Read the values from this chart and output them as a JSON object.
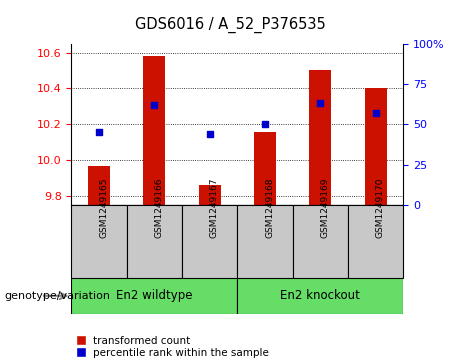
{
  "title": "GDS6016 / A_52_P376535",
  "samples": [
    "GSM1249165",
    "GSM1249166",
    "GSM1249167",
    "GSM1249168",
    "GSM1249169",
    "GSM1249170"
  ],
  "red_values": [
    9.97,
    10.58,
    9.86,
    10.16,
    10.5,
    10.4
  ],
  "blue_percentiles": [
    45,
    62,
    44,
    50,
    63,
    57
  ],
  "ylim_left": [
    9.75,
    10.65
  ],
  "ylim_right": [
    0,
    100
  ],
  "yticks_left": [
    9.8,
    10.0,
    10.2,
    10.4,
    10.6
  ],
  "yticks_right": [
    0,
    25,
    50,
    75,
    100
  ],
  "ytick_labels_right": [
    "0",
    "25",
    "50",
    "75",
    "100%"
  ],
  "group1_label": "En2 wildtype",
  "group2_label": "En2 knockout",
  "group1_indices": [
    0,
    1,
    2
  ],
  "group2_indices": [
    3,
    4,
    5
  ],
  "group_color": "#66DD66",
  "sample_box_color": "#C8C8C8",
  "bar_color": "#CC1100",
  "dot_color": "#0000CC",
  "legend_tc": "transformed count",
  "legend_pr": "percentile rank within the sample",
  "genotype_label": "genotype/variation",
  "background_color": "#ffffff"
}
